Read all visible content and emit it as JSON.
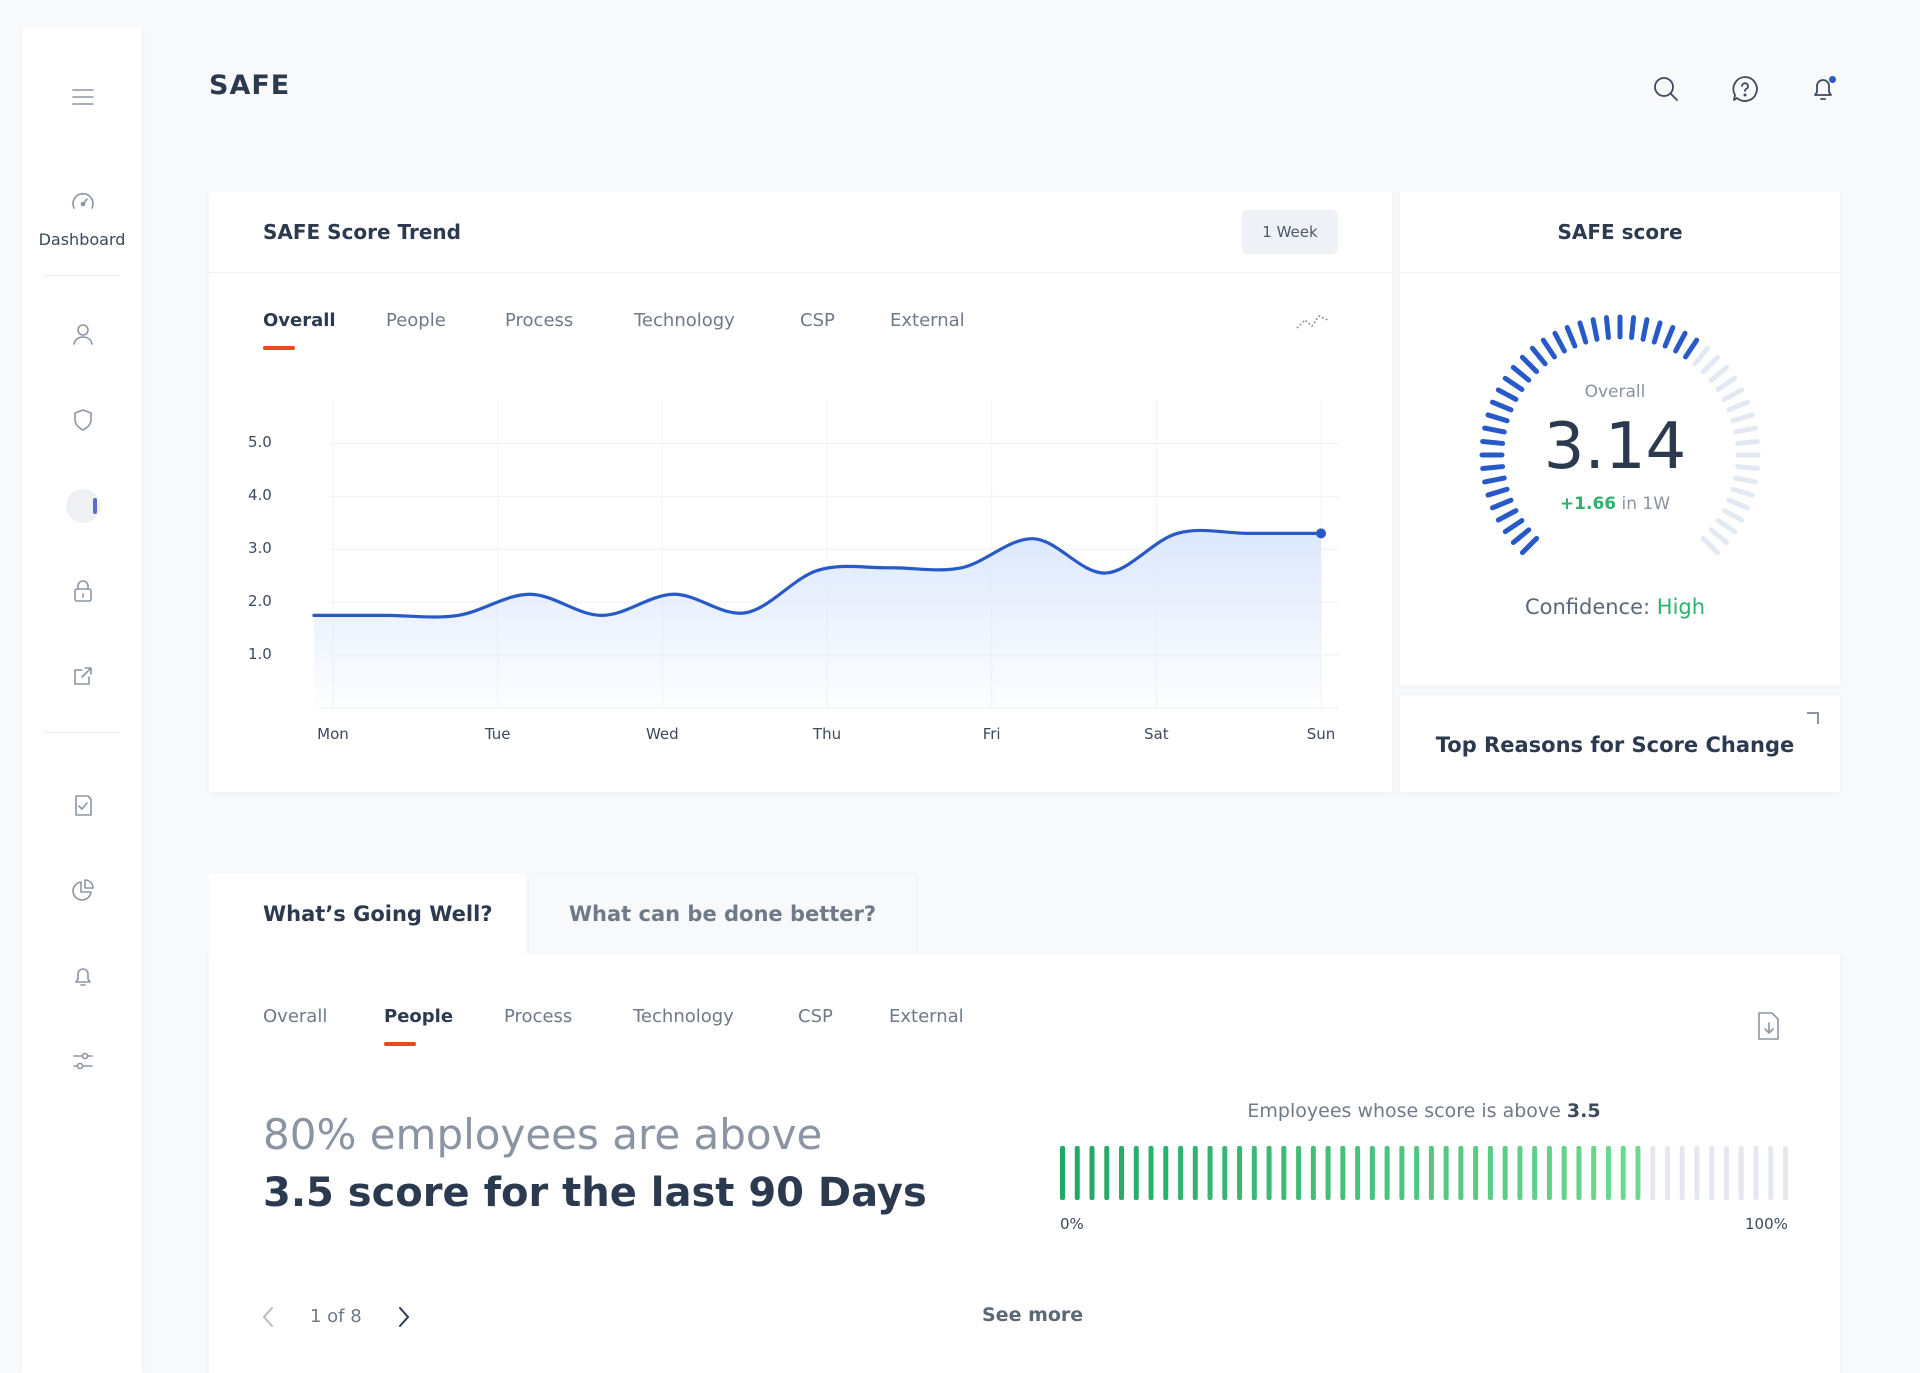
{
  "app": {
    "title": "SAFE"
  },
  "sidebar": {
    "dashboard_label": "Dashboard"
  },
  "trend_card": {
    "title": "SAFE Score Trend",
    "range_button": "1 Week",
    "tabs": [
      "Overall",
      "People",
      "Process",
      "Technology",
      "CSP",
      "External"
    ],
    "active_tab": "Overall"
  },
  "chart_data": {
    "type": "line",
    "x": [
      "Mon",
      "Tue",
      "Wed",
      "Thu",
      "Fri",
      "Sat",
      "Sun"
    ],
    "y_ticks": [
      "5.0",
      "4.0",
      "3.0",
      "2.0",
      "1.0"
    ],
    "ylim": [
      0,
      5.5
    ],
    "series": [
      {
        "points": [
          [
            "Mon",
            1.75
          ],
          [
            "Mon-Tue",
            1.75
          ],
          [
            "Tue",
            1.75
          ],
          [
            "Tue-Wed",
            2.15
          ],
          [
            "Wed",
            1.75
          ],
          [
            "Wed-Thu a",
            2.15
          ],
          [
            "Wed-Thu b",
            1.8
          ],
          [
            "Thu",
            2.6
          ],
          [
            "Thu-Fri",
            2.65
          ],
          [
            "Fri",
            2.65
          ],
          [
            "Fri-Sat a",
            3.2
          ],
          [
            "Fri-Sat b",
            2.55
          ],
          [
            "Sat",
            3.3
          ],
          [
            "Sat-Sun",
            3.3
          ],
          [
            "Sun",
            3.3
          ]
        ]
      }
    ],
    "color": "#2759c9",
    "fill": "#dce8fb",
    "grid": true
  },
  "score_card": {
    "title": "SAFE score",
    "overall_label": "Overall",
    "score": "3.14",
    "delta": "+1.66",
    "delta_suffix": "in 1W",
    "confidence_label": "Confidence:",
    "confidence_value": "High",
    "gauge_fraction": 0.628,
    "gauge_color": "#2759c9",
    "gauge_track_color": "#e3e9f3"
  },
  "reasons_card": {
    "title": "Top Reasons for Score Change"
  },
  "bottom": {
    "section_tabs": [
      "What’s Going Well?",
      "What can be done better?"
    ],
    "tabs": [
      "Overall",
      "People",
      "Process",
      "Technology",
      "CSP",
      "External"
    ],
    "active_tab": "People",
    "headline_1": "80% employees are above",
    "headline_2": "3.5 score for the last 90 Days",
    "bar_title": "Employees whose score is above",
    "bar_threshold": "3.5",
    "bar_fraction": 0.8,
    "bar_min_label": "0%",
    "bar_max_label": "100%",
    "pager_text": "1 of 8",
    "see_more": "See more",
    "bar_fill_from": "#1fa866",
    "bar_fill_to": "#6fd890",
    "bar_empty": "#e4e7ee"
  },
  "colors": {
    "accent": "#e8491d",
    "positive": "#2db36b",
    "primary": "#2759c9"
  }
}
